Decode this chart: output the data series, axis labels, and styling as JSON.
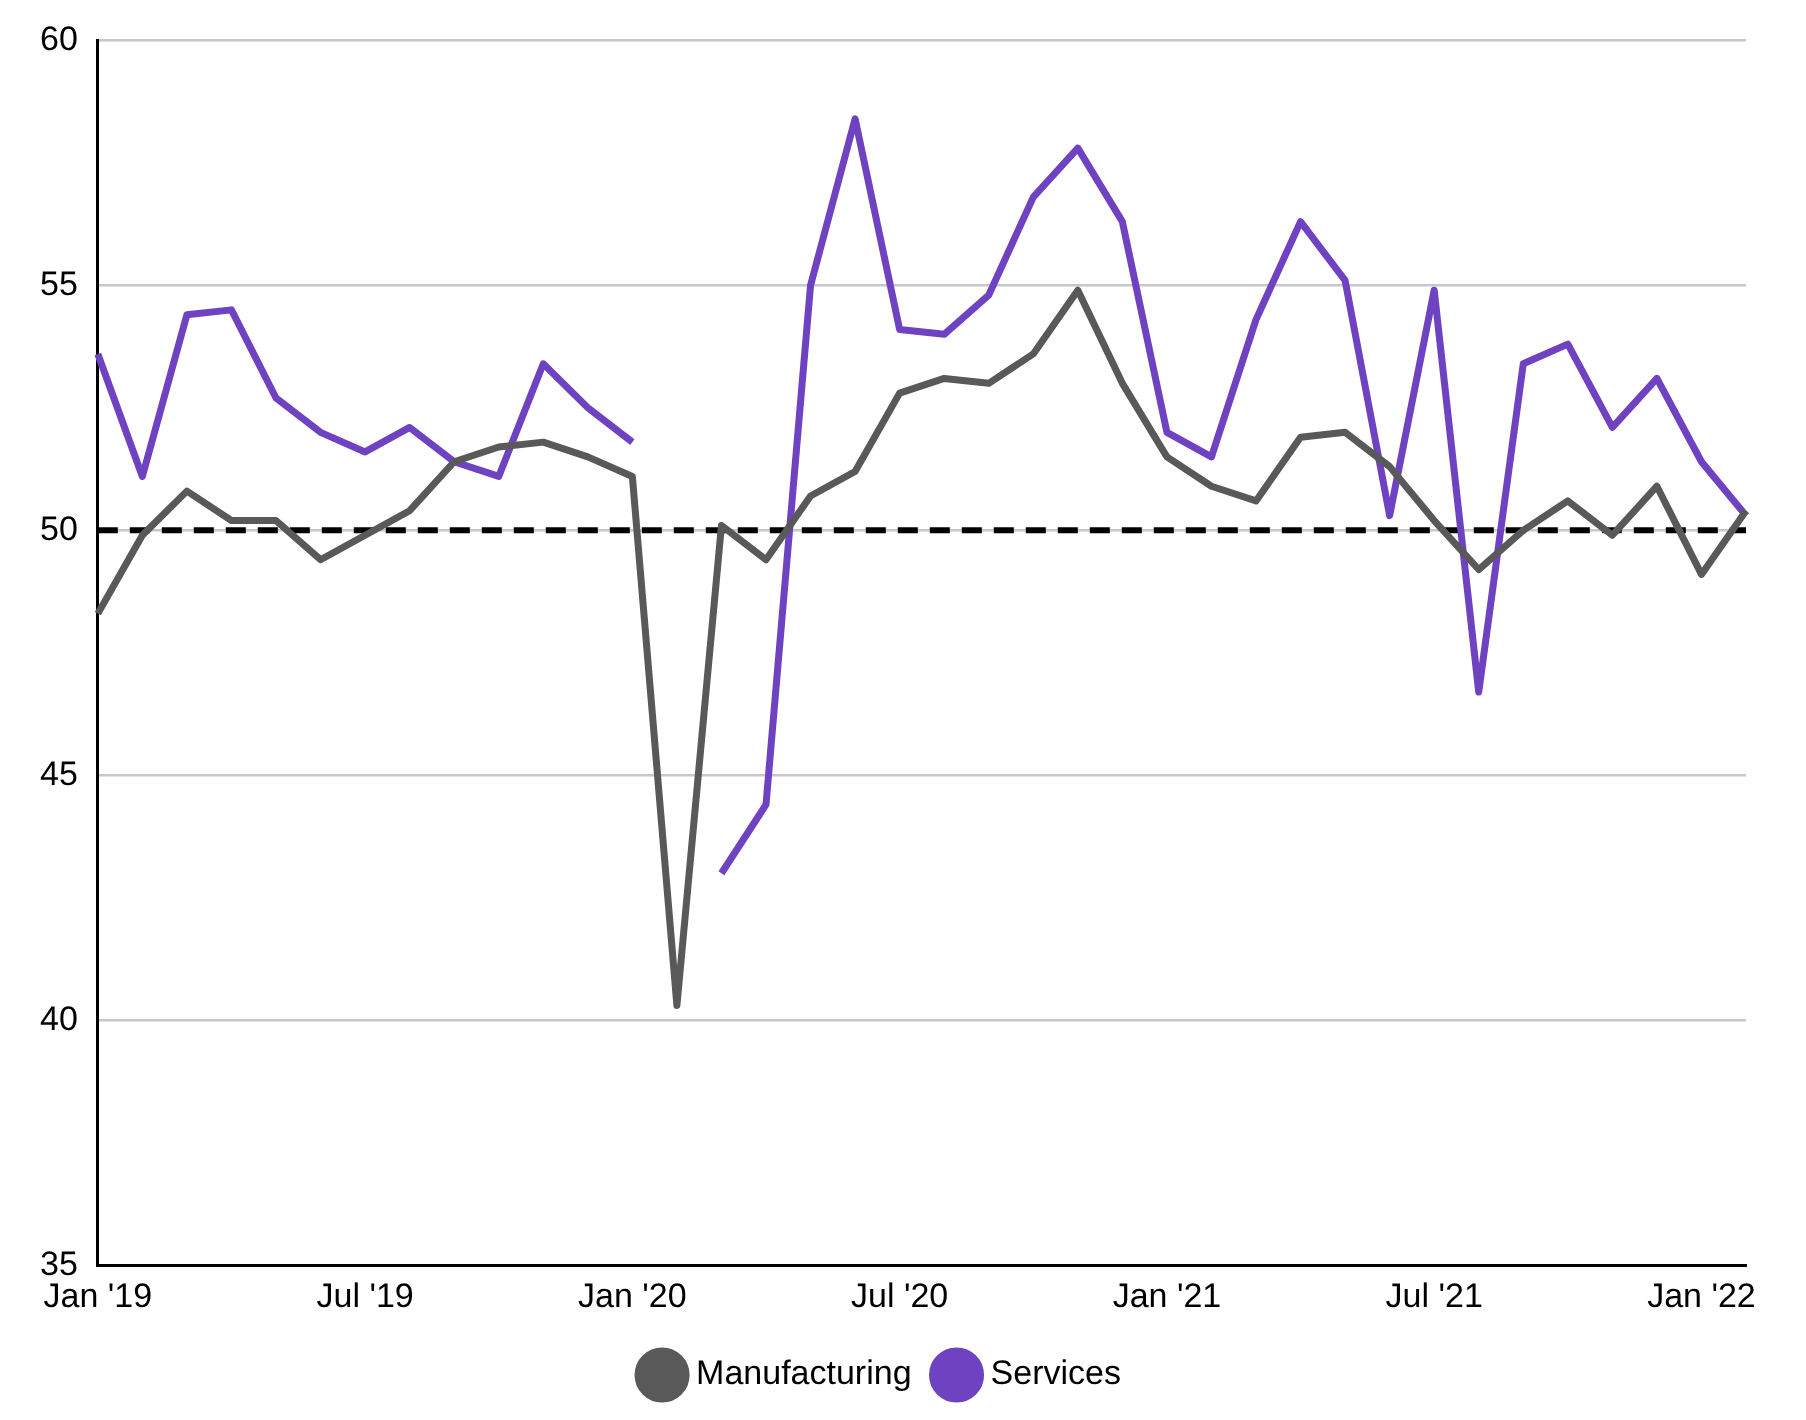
{
  "chart_data": {
    "type": "line",
    "categories": [
      "Jan '19",
      null,
      null,
      null,
      null,
      null,
      "Jul '19",
      null,
      null,
      null,
      null,
      null,
      "Jan '20",
      null,
      null,
      null,
      null,
      null,
      "Jul '20",
      null,
      null,
      null,
      null,
      null,
      "Jan '21",
      null,
      null,
      null,
      null,
      null,
      "Jul '21",
      null,
      null,
      null,
      null,
      null,
      "Jan '22",
      null
    ],
    "series": [
      {
        "name": "Manufacturing",
        "color": "#595959",
        "values": [
          48.3,
          49.9,
          50.8,
          50.2,
          50.2,
          49.4,
          49.9,
          50.4,
          51.4,
          51.7,
          51.8,
          51.5,
          51.1,
          40.3,
          50.1,
          49.4,
          50.7,
          51.2,
          52.8,
          53.1,
          53.0,
          53.6,
          54.9,
          53.0,
          51.5,
          50.9,
          50.6,
          51.9,
          52.0,
          51.3,
          50.2,
          49.2,
          50.0,
          50.6,
          49.9,
          50.9,
          49.1,
          50.4
        ]
      },
      {
        "name": "Services",
        "color": "#6f42c1",
        "values": [
          53.6,
          51.1,
          54.4,
          54.5,
          52.7,
          52.0,
          51.6,
          52.1,
          51.4,
          51.1,
          53.4,
          52.5,
          51.8,
          null,
          43.0,
          44.4,
          55.0,
          58.4,
          54.1,
          54.0,
          54.8,
          56.8,
          57.8,
          56.3,
          52.0,
          51.5,
          54.3,
          56.3,
          55.1,
          50.3,
          54.9,
          46.7,
          53.4,
          53.8,
          52.1,
          53.1,
          51.4,
          50.3
        ]
      }
    ],
    "ylim": [
      35,
      60
    ],
    "yticks": [
      35,
      40,
      45,
      50,
      55,
      60
    ],
    "grid": "y",
    "legend": "bottom",
    "marker": "none",
    "line_style": "solid",
    "ref_lines": [
      {
        "axis": "y",
        "value": 50,
        "color": "#000000",
        "line_style": "dashed"
      }
    ]
  }
}
